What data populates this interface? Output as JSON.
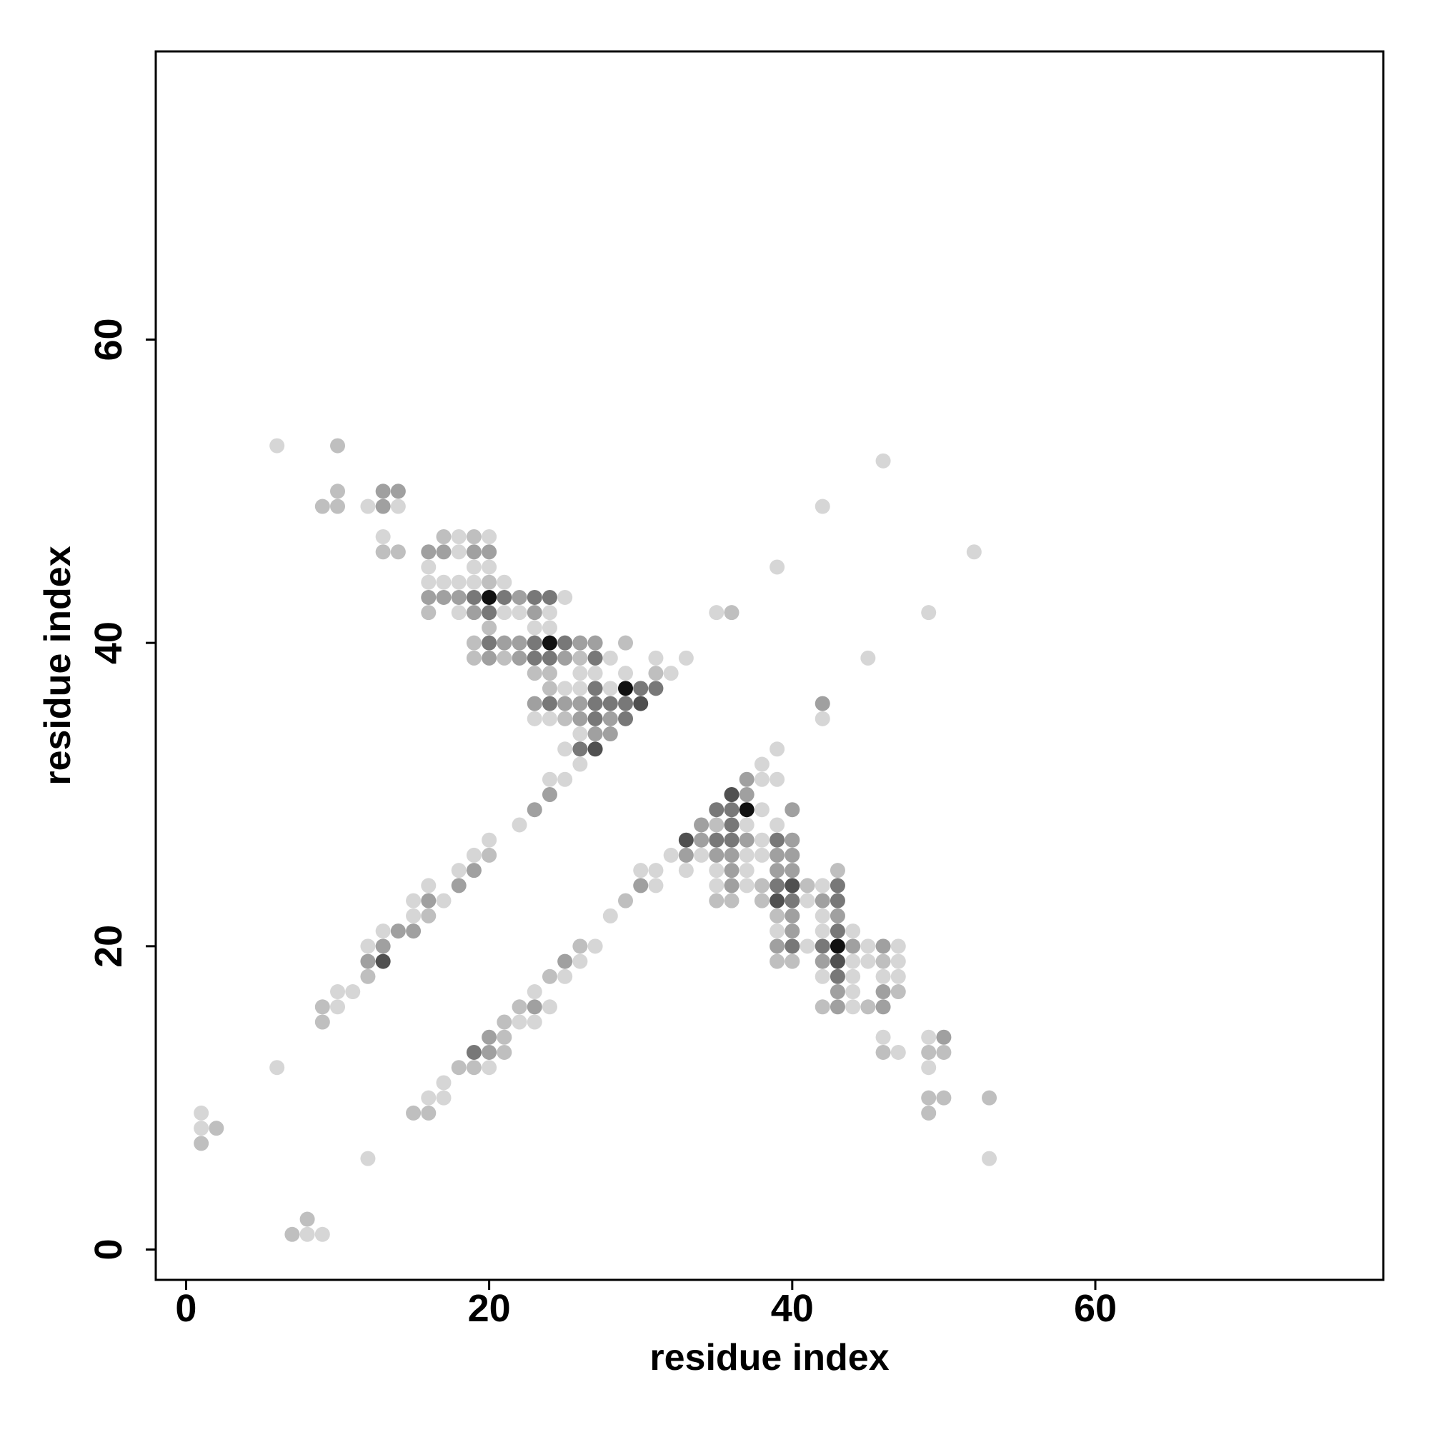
{
  "chart_data": {
    "type": "scatter",
    "x_label": "residue index",
    "y_label": "residue index",
    "xlim": [
      -2,
      79
    ],
    "ylim": [
      -2,
      79
    ],
    "xticks": [
      0,
      20,
      40,
      60
    ],
    "yticks": [
      0,
      20,
      40,
      60
    ],
    "grid": false,
    "series": [
      {
        "color": "#d6d6d6",
        "x": [
          6,
          12,
          14,
          13,
          18,
          20,
          18,
          16,
          19,
          20,
          16,
          17,
          18,
          19,
          21,
          25,
          18,
          21,
          22,
          24,
          23,
          24,
          28,
          31,
          33,
          26,
          27,
          29,
          32,
          25,
          26,
          28,
          23,
          24,
          26,
          25,
          26,
          24,
          25,
          22,
          20,
          19,
          18,
          16,
          15,
          17,
          15,
          13,
          12,
          10,
          11,
          10,
          6,
          12,
          1,
          1,
          8,
          9,
          46,
          42,
          39,
          52,
          35,
          49,
          45,
          42,
          39,
          38,
          38,
          39,
          38,
          37,
          39,
          38,
          32,
          34,
          37,
          38,
          30,
          31,
          33,
          35,
          37,
          31,
          35,
          37,
          42,
          41,
          28,
          42,
          39,
          42,
          44,
          27,
          41,
          45,
          47,
          26,
          44,
          45,
          47,
          25,
          42,
          44,
          46,
          47,
          23,
          44,
          24,
          44,
          22,
          23,
          46,
          49,
          47,
          20,
          49,
          17,
          16,
          17,
          53
        ],
        "y": [
          53,
          49,
          49,
          47,
          47,
          47,
          46,
          45,
          45,
          45,
          44,
          44,
          44,
          44,
          44,
          43,
          42,
          42,
          42,
          42,
          41,
          41,
          39,
          39,
          39,
          38,
          38,
          38,
          38,
          37,
          37,
          37,
          35,
          35,
          34,
          33,
          32,
          31,
          31,
          28,
          27,
          26,
          25,
          24,
          23,
          23,
          22,
          21,
          20,
          17,
          17,
          16,
          12,
          6,
          9,
          8,
          1,
          1,
          52,
          49,
          45,
          46,
          42,
          42,
          39,
          35,
          33,
          32,
          31,
          31,
          29,
          28,
          28,
          27,
          26,
          26,
          26,
          26,
          25,
          25,
          25,
          25,
          25,
          24,
          24,
          24,
          24,
          23,
          22,
          22,
          21,
          21,
          21,
          20,
          20,
          20,
          20,
          19,
          19,
          19,
          19,
          18,
          18,
          18,
          18,
          18,
          17,
          17,
          16,
          16,
          15,
          15,
          14,
          14,
          13,
          12,
          12,
          11,
          10,
          10,
          6
        ]
      },
      {
        "color": "#bfbfbf",
        "x": [
          10,
          9,
          10,
          10,
          13,
          14,
          17,
          19,
          20,
          16,
          20,
          19,
          29,
          19,
          21,
          26,
          23,
          24,
          31,
          24,
          25,
          20,
          16,
          12,
          9,
          9,
          2,
          1,
          8,
          7,
          36,
          35,
          43,
          38,
          41,
          29,
          35,
          36,
          38,
          39,
          26,
          39,
          40,
          46,
          24,
          47,
          22,
          42,
          45,
          21,
          21,
          21,
          46,
          49,
          50,
          18,
          19,
          49,
          50,
          53,
          15,
          16,
          49
        ],
        "y": [
          53,
          49,
          49,
          50,
          46,
          46,
          47,
          47,
          44,
          42,
          41,
          40,
          40,
          39,
          39,
          39,
          38,
          38,
          38,
          37,
          35,
          26,
          22,
          18,
          16,
          15,
          8,
          7,
          2,
          1,
          42,
          28,
          25,
          24,
          24,
          23,
          23,
          23,
          23,
          22,
          20,
          19,
          19,
          19,
          18,
          17,
          16,
          16,
          16,
          15,
          14,
          13,
          13,
          13,
          13,
          12,
          12,
          10,
          10,
          10,
          9,
          9,
          9
        ]
      },
      {
        "color": "#a0a0a0",
        "x": [
          13,
          13,
          14,
          16,
          17,
          19,
          20,
          16,
          17,
          18,
          22,
          19,
          23,
          21,
          22,
          26,
          27,
          20,
          22,
          25,
          23,
          25,
          26,
          26,
          28,
          27,
          28,
          24,
          23,
          19,
          18,
          16,
          14,
          15,
          13,
          12,
          42,
          37,
          37,
          40,
          34,
          34,
          37,
          40,
          33,
          35,
          36,
          39,
          40,
          36,
          39,
          40,
          30,
          36,
          42,
          40,
          43,
          40,
          39,
          44,
          46,
          25,
          42,
          43,
          46,
          23,
          43,
          46,
          20,
          50,
          20
        ],
        "y": [
          49,
          50,
          50,
          46,
          46,
          46,
          46,
          43,
          43,
          43,
          43,
          42,
          42,
          40,
          40,
          40,
          40,
          39,
          39,
          39,
          36,
          36,
          36,
          35,
          35,
          34,
          34,
          30,
          29,
          25,
          24,
          23,
          21,
          21,
          20,
          19,
          36,
          31,
          30,
          29,
          28,
          27,
          27,
          27,
          26,
          26,
          26,
          26,
          26,
          25,
          25,
          25,
          24,
          24,
          23,
          22,
          22,
          21,
          20,
          20,
          20,
          19,
          19,
          17,
          17,
          16,
          16,
          16,
          14,
          14,
          13
        ]
      },
      {
        "color": "#787878",
        "x": [
          19,
          21,
          23,
          24,
          20,
          20,
          23,
          25,
          23,
          24,
          27,
          27,
          30,
          31,
          24,
          27,
          28,
          29,
          27,
          29,
          26,
          35,
          36,
          36,
          35,
          36,
          39,
          39,
          43,
          40,
          43,
          43,
          40,
          42,
          43,
          19
        ],
        "y": [
          43,
          43,
          43,
          43,
          42,
          40,
          40,
          40,
          39,
          39,
          39,
          37,
          37,
          37,
          36,
          36,
          36,
          36,
          35,
          35,
          33,
          29,
          29,
          28,
          27,
          27,
          27,
          24,
          24,
          23,
          23,
          21,
          20,
          20,
          18,
          13
        ]
      },
      {
        "color": "#505050",
        "x": [
          30,
          27,
          13,
          36,
          33,
          40,
          39,
          43
        ],
        "y": [
          36,
          33,
          19,
          30,
          27,
          24,
          23,
          19
        ]
      },
      {
        "color": "#111111",
        "x": [
          20,
          24,
          29,
          37,
          43
        ],
        "y": [
          43,
          40,
          37,
          29,
          20
        ]
      }
    ]
  }
}
